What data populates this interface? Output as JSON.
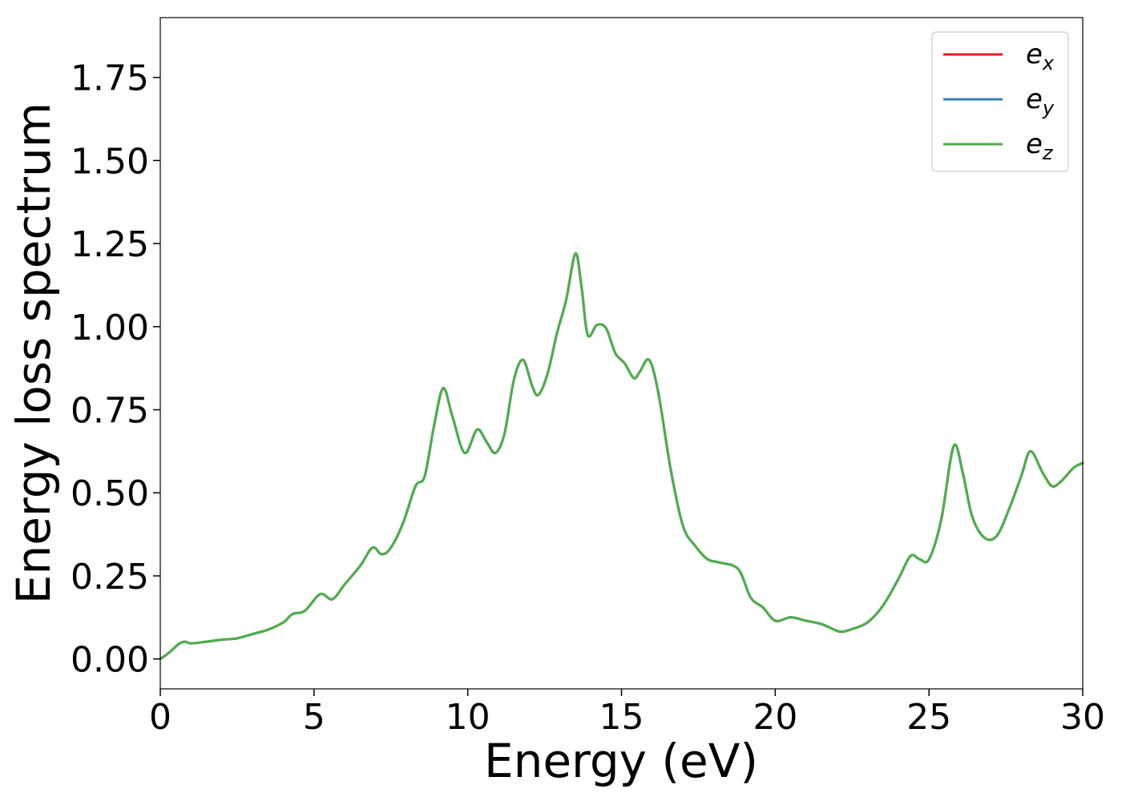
{
  "chart_data": {
    "type": "line",
    "title": "",
    "xlabel": "Energy (eV)",
    "ylabel": "Energy loss spectrum",
    "xlim": [
      0,
      30
    ],
    "ylim": [
      -0.09,
      1.93
    ],
    "xticks": [
      0,
      5,
      10,
      15,
      20,
      25,
      30
    ],
    "xtick_labels": [
      "0",
      "5",
      "10",
      "15",
      "20",
      "25",
      "30"
    ],
    "yticks": [
      0.0,
      0.25,
      0.5,
      0.75,
      1.0,
      1.25,
      1.5,
      1.75
    ],
    "ytick_labels": [
      "0.00",
      "0.25",
      "0.50",
      "0.75",
      "1.00",
      "1.25",
      "1.50",
      "1.75"
    ],
    "grid": false,
    "legend_position": "top-right",
    "x": [
      0,
      0.3,
      0.6,
      0.8,
      1.0,
      1.5,
      2.0,
      2.5,
      3.0,
      3.5,
      4.0,
      4.3,
      4.7,
      5.2,
      5.6,
      6.0,
      6.5,
      6.9,
      7.2,
      7.5,
      7.9,
      8.3,
      8.6,
      8.9,
      9.2,
      9.5,
      9.9,
      10.3,
      10.6,
      10.9,
      11.2,
      11.5,
      11.8,
      12.1,
      12.3,
      12.6,
      12.9,
      13.2,
      13.5,
      13.7,
      13.9,
      14.2,
      14.5,
      14.8,
      15.1,
      15.4,
      15.6,
      15.9,
      16.2,
      16.6,
      17.0,
      17.4,
      17.8,
      18.2,
      18.8,
      19.2,
      19.6,
      20.0,
      20.5,
      21.0,
      21.5,
      22.0,
      22.2,
      22.5,
      23.0,
      23.5,
      24.0,
      24.4,
      24.7,
      25.0,
      25.4,
      25.8,
      26.1,
      26.4,
      26.8,
      27.2,
      27.6,
      28.0,
      28.3,
      28.7,
      29.0,
      29.3,
      29.7,
      30.0
    ],
    "series": [
      {
        "name": "e_x",
        "label_base": "e",
        "label_sub": "x",
        "color": "#e41a1c",
        "values": [
          0.0,
          0.02,
          0.045,
          0.052,
          0.047,
          0.052,
          0.058,
          0.062,
          0.075,
          0.088,
          0.11,
          0.135,
          0.145,
          0.195,
          0.18,
          0.225,
          0.28,
          0.335,
          0.315,
          0.335,
          0.41,
          0.52,
          0.55,
          0.7,
          0.815,
          0.73,
          0.62,
          0.69,
          0.655,
          0.62,
          0.68,
          0.84,
          0.9,
          0.82,
          0.795,
          0.86,
          0.98,
          1.08,
          1.22,
          1.12,
          0.975,
          1.005,
          0.995,
          0.92,
          0.89,
          0.845,
          0.865,
          0.9,
          0.8,
          0.57,
          0.4,
          0.34,
          0.3,
          0.29,
          0.27,
          0.185,
          0.155,
          0.115,
          0.125,
          0.115,
          0.105,
          0.085,
          0.082,
          0.09,
          0.11,
          0.16,
          0.24,
          0.31,
          0.3,
          0.3,
          0.42,
          0.64,
          0.56,
          0.43,
          0.365,
          0.37,
          0.45,
          0.55,
          0.625,
          0.56,
          0.52,
          0.535,
          0.575,
          0.59
        ]
      },
      {
        "name": "e_y",
        "label_base": "e",
        "label_sub": "y",
        "color": "#377eb8",
        "values": [
          0.0,
          0.02,
          0.045,
          0.052,
          0.047,
          0.052,
          0.058,
          0.062,
          0.075,
          0.088,
          0.11,
          0.135,
          0.145,
          0.195,
          0.18,
          0.225,
          0.28,
          0.335,
          0.315,
          0.335,
          0.41,
          0.52,
          0.55,
          0.7,
          0.815,
          0.73,
          0.62,
          0.69,
          0.655,
          0.62,
          0.68,
          0.84,
          0.9,
          0.82,
          0.795,
          0.86,
          0.98,
          1.08,
          1.22,
          1.12,
          0.975,
          1.005,
          0.995,
          0.92,
          0.89,
          0.845,
          0.865,
          0.9,
          0.8,
          0.57,
          0.4,
          0.34,
          0.3,
          0.29,
          0.27,
          0.185,
          0.155,
          0.115,
          0.125,
          0.115,
          0.105,
          0.085,
          0.082,
          0.09,
          0.11,
          0.16,
          0.24,
          0.31,
          0.3,
          0.3,
          0.42,
          0.64,
          0.56,
          0.43,
          0.365,
          0.37,
          0.45,
          0.55,
          0.625,
          0.56,
          0.52,
          0.535,
          0.575,
          0.59
        ]
      },
      {
        "name": "e_z",
        "label_base": "e",
        "label_sub": "z",
        "color": "#4daf4a",
        "values": [
          0.0,
          0.02,
          0.045,
          0.052,
          0.047,
          0.052,
          0.058,
          0.062,
          0.075,
          0.088,
          0.11,
          0.135,
          0.145,
          0.195,
          0.18,
          0.225,
          0.28,
          0.335,
          0.315,
          0.335,
          0.41,
          0.52,
          0.55,
          0.7,
          0.815,
          0.73,
          0.62,
          0.69,
          0.655,
          0.62,
          0.68,
          0.84,
          0.9,
          0.82,
          0.795,
          0.86,
          0.98,
          1.08,
          1.22,
          1.12,
          0.975,
          1.005,
          0.995,
          0.92,
          0.89,
          0.845,
          0.865,
          0.9,
          0.8,
          0.57,
          0.4,
          0.34,
          0.3,
          0.29,
          0.27,
          0.185,
          0.155,
          0.115,
          0.125,
          0.115,
          0.105,
          0.085,
          0.082,
          0.09,
          0.11,
          0.16,
          0.24,
          0.31,
          0.3,
          0.3,
          0.42,
          0.64,
          0.56,
          0.43,
          0.365,
          0.37,
          0.45,
          0.55,
          0.625,
          0.56,
          0.52,
          0.535,
          0.575,
          0.59
        ]
      }
    ]
  }
}
